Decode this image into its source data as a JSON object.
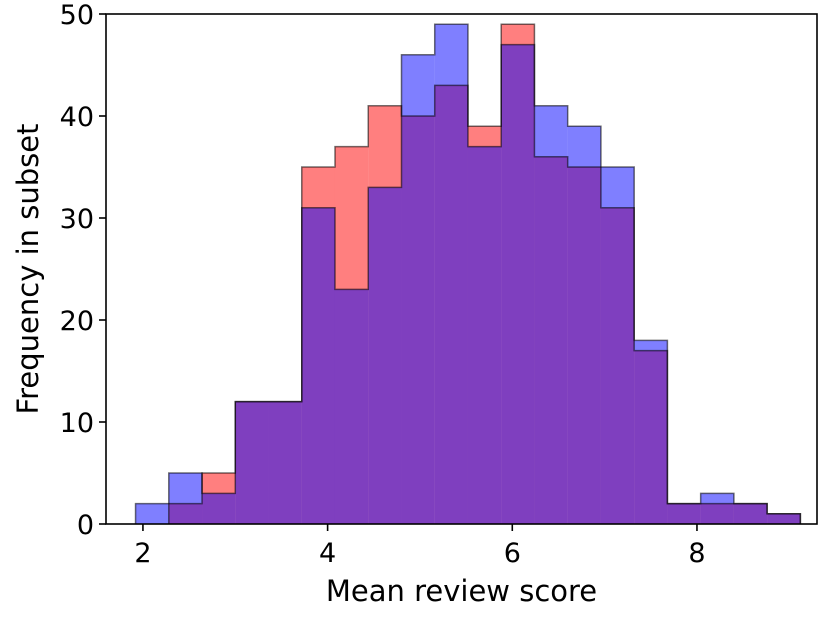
{
  "chart_data": {
    "type": "histogram",
    "title": "",
    "xlabel": "Mean review score",
    "ylabel": "Frequency in subset",
    "xlim": [
      1.6,
      9.3
    ],
    "ylim": [
      0,
      50
    ],
    "xticks": [
      2,
      4,
      6,
      8
    ],
    "yticks": [
      0,
      10,
      20,
      30,
      40,
      50
    ],
    "grid": false,
    "legend": "none",
    "bin_edges": [
      1.92,
      2.28,
      2.64,
      3.0,
      3.36,
      3.72,
      4.08,
      4.44,
      4.8,
      5.16,
      5.52,
      5.88,
      6.24,
      6.6,
      6.96,
      7.32,
      7.68,
      8.04,
      8.4,
      8.76,
      9.12
    ],
    "series": [
      {
        "color": "#ff0000",
        "opacity": 0.5,
        "values": [
          0,
          2,
          5,
          12,
          12,
          35,
          37,
          41,
          40,
          43,
          39,
          49,
          36,
          35,
          31,
          17,
          2,
          2,
          2,
          1
        ]
      },
      {
        "color": "#0000ff",
        "opacity": 0.5,
        "values": [
          2,
          5,
          3,
          12,
          12,
          31,
          23,
          33,
          46,
          49,
          37,
          47,
          41,
          39,
          35,
          18,
          2,
          3,
          2,
          1
        ]
      }
    ]
  }
}
